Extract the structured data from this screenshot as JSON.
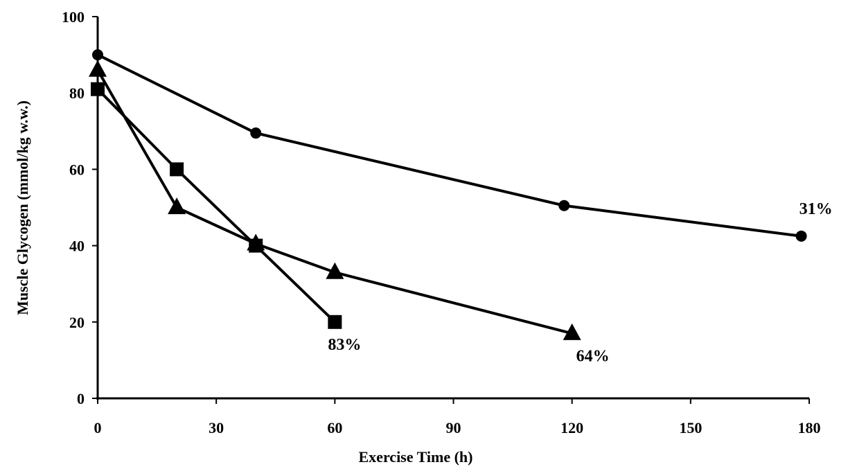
{
  "chart_data": {
    "type": "line",
    "title": "",
    "xlabel": "Exercise Time (h)",
    "ylabel": "Muscle Glycogen (mmol/kg w.w.)",
    "xlim": [
      0,
      180
    ],
    "ylim": [
      0,
      100
    ],
    "xticks": [
      0,
      30,
      60,
      90,
      120,
      150,
      180
    ],
    "yticks": [
      0,
      20,
      40,
      60,
      80,
      100
    ],
    "grid": false,
    "legend": "none",
    "series": [
      {
        "marker": "circle",
        "color": "#000000",
        "points": [
          {
            "x": 0,
            "y": 90
          },
          {
            "x": 40,
            "y": 69.5
          },
          {
            "x": 118,
            "y": 50.5
          },
          {
            "x": 178,
            "y": 42.5
          }
        ]
      },
      {
        "marker": "triangle",
        "color": "#000000",
        "points": [
          {
            "x": 0,
            "y": 86
          },
          {
            "x": 20,
            "y": 50
          },
          {
            "x": 40,
            "y": 40.5
          },
          {
            "x": 60,
            "y": 33
          },
          {
            "x": 120,
            "y": 17
          }
        ]
      },
      {
        "marker": "square",
        "color": "#000000",
        "points": [
          {
            "x": 0,
            "y": 81
          },
          {
            "x": 20,
            "y": 60
          },
          {
            "x": 40,
            "y": 40
          },
          {
            "x": 60,
            "y": 20
          }
        ]
      }
    ],
    "annotations": [
      {
        "text": "31%",
        "x": 178,
        "y": 42.5
      },
      {
        "text": "64%",
        "x": 120,
        "y": 17
      },
      {
        "text": "83%",
        "x": 60,
        "y": 20
      }
    ]
  }
}
